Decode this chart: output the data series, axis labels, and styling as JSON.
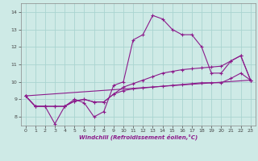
{
  "xlabel": "Windchill (Refroidissement éolien,°C)",
  "bg_color": "#ceeae6",
  "grid_color": "#aad4d0",
  "line_color": "#8b1a8b",
  "xlim": [
    -0.5,
    23.5
  ],
  "ylim": [
    7.5,
    14.5
  ],
  "xticks": [
    0,
    1,
    2,
    3,
    4,
    5,
    6,
    7,
    8,
    9,
    10,
    11,
    12,
    13,
    14,
    15,
    16,
    17,
    18,
    19,
    20,
    21,
    22,
    23
  ],
  "yticks": [
    8,
    9,
    10,
    11,
    12,
    13,
    14
  ],
  "lines": [
    {
      "x": [
        0,
        1,
        2,
        3,
        4,
        5,
        6,
        7,
        8,
        9,
        10,
        11,
        12,
        13,
        14,
        15,
        16,
        17,
        18,
        19,
        20,
        21,
        22,
        23
      ],
      "y": [
        9.2,
        8.6,
        8.6,
        7.6,
        8.6,
        9.0,
        8.8,
        8.0,
        8.3,
        9.8,
        10.0,
        12.4,
        12.7,
        13.8,
        13.6,
        13.0,
        12.7,
        12.7,
        12.0,
        10.5,
        10.5,
        11.2,
        11.5,
        10.1
      ],
      "marker": true
    },
    {
      "x": [
        0,
        1,
        2,
        3,
        4,
        5,
        6,
        7,
        8,
        9,
        10,
        11,
        12,
        13,
        14,
        15,
        16,
        17,
        18,
        19,
        20,
        21,
        22,
        23
      ],
      "y": [
        9.2,
        8.6,
        8.6,
        8.6,
        8.6,
        8.9,
        9.0,
        8.85,
        8.85,
        9.3,
        9.5,
        9.6,
        9.65,
        9.7,
        9.75,
        9.8,
        9.85,
        9.9,
        9.95,
        9.95,
        9.95,
        10.2,
        10.5,
        10.1
      ],
      "marker": true
    },
    {
      "x": [
        0,
        23
      ],
      "y": [
        9.2,
        10.1
      ],
      "marker": false
    },
    {
      "x": [
        0,
        1,
        2,
        3,
        4,
        5,
        6,
        7,
        8,
        9,
        10,
        11,
        12,
        13,
        14,
        15,
        16,
        17,
        18,
        19,
        20,
        21,
        22,
        23
      ],
      "y": [
        9.2,
        8.6,
        8.6,
        8.6,
        8.6,
        8.9,
        9.0,
        8.85,
        8.85,
        9.3,
        9.7,
        9.9,
        10.1,
        10.3,
        10.5,
        10.6,
        10.7,
        10.75,
        10.8,
        10.85,
        10.9,
        11.2,
        11.5,
        10.1
      ],
      "marker": true
    }
  ]
}
